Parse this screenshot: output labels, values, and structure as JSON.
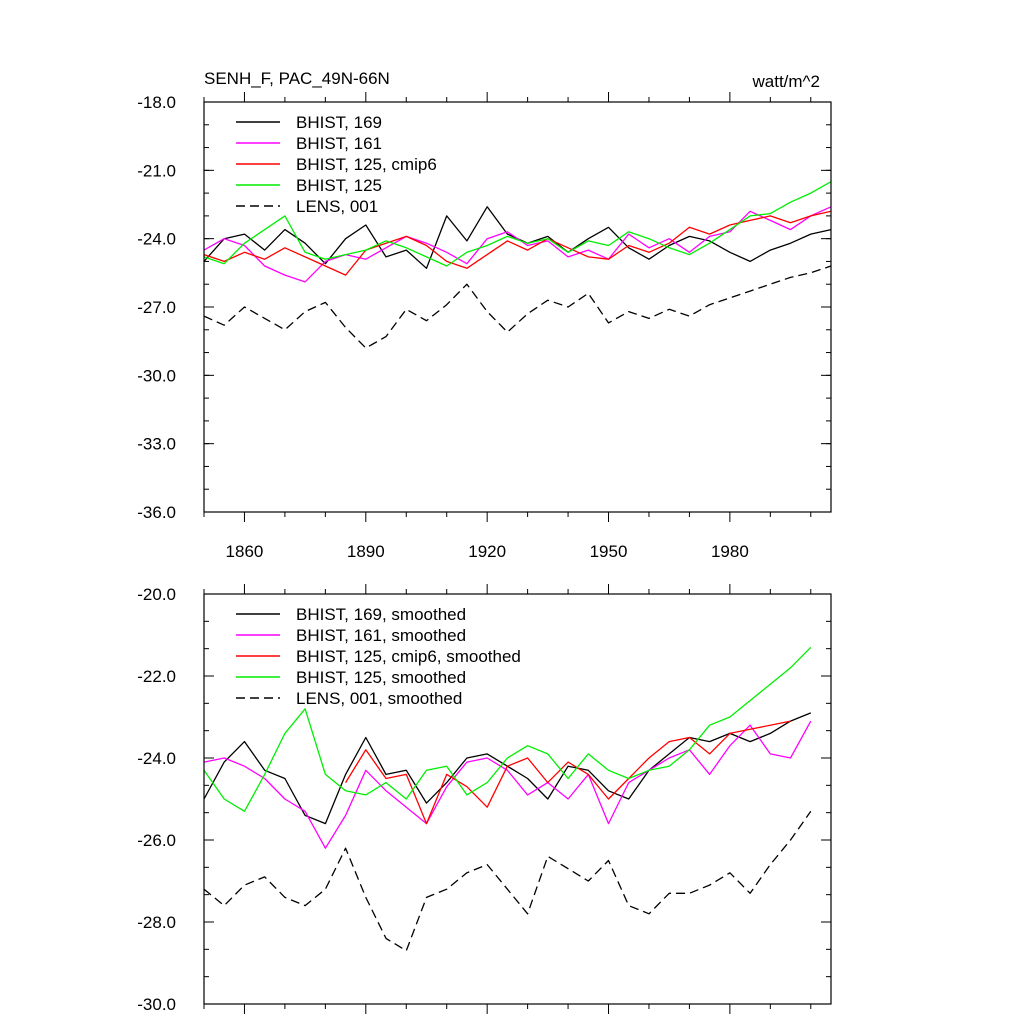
{
  "header": {
    "title": "SENH_F, PAC_49N-66N",
    "units": "watt/m^2"
  },
  "chart_data": [
    {
      "type": "line",
      "title": "SENH_F, PAC_49N-66N",
      "units": "watt/m^2",
      "xlim": [
        1850,
        2005
      ],
      "ylim": [
        -36.0,
        -18.0
      ],
      "x_ticks": [
        1860,
        1890,
        1920,
        1950,
        1980
      ],
      "x_tick_labels": [
        "1860",
        "1890",
        "1920",
        "1950",
        "1980"
      ],
      "y_ticks": [
        -36.0,
        -33.0,
        -30.0,
        -27.0,
        -24.0,
        -21.0,
        -18.0
      ],
      "y_tick_labels": [
        "-36.0",
        "-33.0",
        "-30.0",
        "-27.0",
        "-24.0",
        "-21.0",
        "-18.0"
      ],
      "legend_position": "top-left",
      "series": [
        {
          "name": "BHIST, 169",
          "color": "#000000",
          "dash": "solid",
          "x_start": 1850,
          "x_step": 5,
          "values": [
            -25.0,
            -24.0,
            -23.8,
            -24.5,
            -23.6,
            -24.2,
            -25.1,
            -24.0,
            -23.4,
            -24.8,
            -24.5,
            -25.3,
            -23.0,
            -24.1,
            -22.6,
            -23.8,
            -24.2,
            -23.9,
            -24.6,
            -24.0,
            -23.5,
            -24.4,
            -24.9,
            -24.3,
            -23.9,
            -24.1,
            -24.6,
            -25.0,
            -24.5,
            -24.2,
            -23.8,
            -23.6
          ]
        },
        {
          "name": "BHIST, 161",
          "color": "#ff00ff",
          "dash": "solid",
          "x_start": 1850,
          "x_step": 5,
          "values": [
            -24.5,
            -24.0,
            -24.3,
            -25.2,
            -25.6,
            -25.9,
            -25.0,
            -24.7,
            -24.9,
            -24.4,
            -23.9,
            -24.2,
            -24.6,
            -25.1,
            -24.0,
            -23.7,
            -24.3,
            -24.1,
            -24.8,
            -24.5,
            -24.9,
            -23.8,
            -24.4,
            -24.0,
            -24.6,
            -23.9,
            -23.7,
            -22.8,
            -23.2,
            -23.6,
            -23.0,
            -22.6
          ]
        },
        {
          "name": "BHIST, 125, cmip6",
          "color": "#ff0000",
          "dash": "solid",
          "x_start": 1850,
          "x_step": 5,
          "values": [
            -24.7,
            -25.0,
            -24.6,
            -24.9,
            -24.4,
            -24.8,
            -25.2,
            -25.6,
            -24.5,
            -24.2,
            -23.9,
            -24.3,
            -25.0,
            -25.3,
            -24.7,
            -24.1,
            -24.5,
            -24.0,
            -24.4,
            -24.8,
            -24.9,
            -24.3,
            -24.6,
            -24.2,
            -23.5,
            -23.8,
            -23.4,
            -23.2,
            -23.0,
            -23.3,
            -23.0,
            -22.8
          ]
        },
        {
          "name": "BHIST, 125",
          "color": "#00ee00",
          "dash": "solid",
          "x_start": 1850,
          "x_step": 5,
          "values": [
            -24.8,
            -25.1,
            -24.2,
            -23.6,
            -23.0,
            -24.6,
            -24.9,
            -24.7,
            -24.5,
            -24.1,
            -24.4,
            -24.8,
            -25.2,
            -24.6,
            -24.3,
            -23.9,
            -24.2,
            -24.0,
            -24.6,
            -24.1,
            -24.3,
            -23.7,
            -24.0,
            -24.4,
            -24.7,
            -24.2,
            -23.6,
            -23.0,
            -22.9,
            -22.4,
            -22.0,
            -21.5
          ]
        },
        {
          "name": "LENS, 001",
          "color": "#000000",
          "dash": "dashed",
          "x_start": 1850,
          "x_step": 5,
          "values": [
            -27.4,
            -27.8,
            -27.0,
            -27.5,
            -28.0,
            -27.2,
            -26.8,
            -27.9,
            -28.8,
            -28.3,
            -27.1,
            -27.6,
            -26.9,
            -26.0,
            -27.2,
            -28.1,
            -27.3,
            -26.7,
            -27.0,
            -26.4,
            -27.7,
            -27.2,
            -27.5,
            -27.1,
            -27.4,
            -26.9,
            -26.6,
            -26.3,
            -26.0,
            -25.7,
            -25.5,
            -25.2
          ]
        }
      ]
    },
    {
      "type": "line",
      "xlim": [
        1850,
        2005
      ],
      "ylim": [
        -30.0,
        -20.0
      ],
      "x_ticks": [
        1860,
        1890,
        1920,
        1950,
        1980
      ],
      "y_ticks": [
        -30.0,
        -28.0,
        -26.0,
        -24.0,
        -22.0,
        -20.0
      ],
      "y_tick_labels": [
        "-30.0",
        "-28.0",
        "-26.0",
        "-24.0",
        "-22.0",
        "-20.0"
      ],
      "legend_position": "top-left",
      "series": [
        {
          "name": "BHIST, 169, smoothed",
          "color": "#000000",
          "dash": "solid",
          "x_start": 1850,
          "x_step": 5,
          "values": [
            -25.0,
            -24.1,
            -23.6,
            -24.3,
            -24.5,
            -25.4,
            -25.6,
            -24.4,
            -23.5,
            -24.4,
            -24.3,
            -25.1,
            -24.6,
            -24.0,
            -23.9,
            -24.2,
            -24.5,
            -25.0,
            -24.2,
            -24.3,
            -24.8,
            -25.0,
            -24.3,
            -23.9,
            -23.5,
            -23.6,
            -23.4,
            -23.6,
            -23.4,
            -23.1,
            -22.9
          ]
        },
        {
          "name": "BHIST, 161, smoothed",
          "color": "#ff00ff",
          "dash": "solid",
          "x_start": 1850,
          "x_step": 5,
          "values": [
            -24.1,
            -24.0,
            -24.2,
            -24.5,
            -25.0,
            -25.3,
            -26.2,
            -25.4,
            -24.3,
            -24.8,
            -25.2,
            -25.6,
            -24.7,
            -24.1,
            -24.0,
            -24.3,
            -24.9,
            -24.6,
            -25.0,
            -24.4,
            -25.6,
            -24.6,
            -24.3,
            -24.0,
            -23.8,
            -24.4,
            -23.7,
            -23.2,
            -23.9,
            -24.0,
            -23.1
          ]
        },
        {
          "name": "BHIST, 125, cmip6, smoothed",
          "color": "#ff0000",
          "dash": "solid",
          "x_start": 1850,
          "x_step": 5,
          "values": [
            null,
            null,
            null,
            null,
            null,
            null,
            null,
            -24.6,
            -23.8,
            -24.5,
            -24.4,
            -25.6,
            -24.4,
            -24.7,
            -25.2,
            -24.2,
            -24.0,
            -24.6,
            -24.1,
            -24.4,
            -25.0,
            -24.5,
            -24.0,
            -23.6,
            -23.5,
            -23.9,
            -23.4,
            -23.3,
            -23.2,
            -23.1,
            null
          ]
        },
        {
          "name": "BHIST, 125, smoothed",
          "color": "#00ee00",
          "dash": "solid",
          "x_start": 1850,
          "x_step": 5,
          "values": [
            -24.3,
            -25.0,
            -25.3,
            -24.4,
            -23.4,
            -22.8,
            -24.4,
            -24.8,
            -24.9,
            -24.6,
            -25.0,
            -24.3,
            -24.2,
            -24.9,
            -24.6,
            -24.0,
            -23.7,
            -23.9,
            -24.5,
            -23.9,
            -24.3,
            -24.5,
            -24.3,
            -24.2,
            -23.8,
            -23.2,
            -23.0,
            -22.6,
            -22.2,
            -21.8,
            -21.3
          ]
        },
        {
          "name": "LENS, 001, smoothed",
          "color": "#000000",
          "dash": "dashed",
          "x_start": 1850,
          "x_step": 5,
          "values": [
            -27.2,
            -27.6,
            -27.1,
            -26.9,
            -27.4,
            -27.6,
            -27.2,
            -26.2,
            -27.4,
            -28.4,
            -28.7,
            -27.4,
            -27.2,
            -26.8,
            -26.6,
            -27.2,
            -27.8,
            -26.4,
            -26.7,
            -27.0,
            -26.5,
            -27.6,
            -27.8,
            -27.3,
            -27.3,
            -27.1,
            -26.8,
            -27.3,
            -26.6,
            -26.0,
            -25.3
          ]
        }
      ]
    }
  ]
}
